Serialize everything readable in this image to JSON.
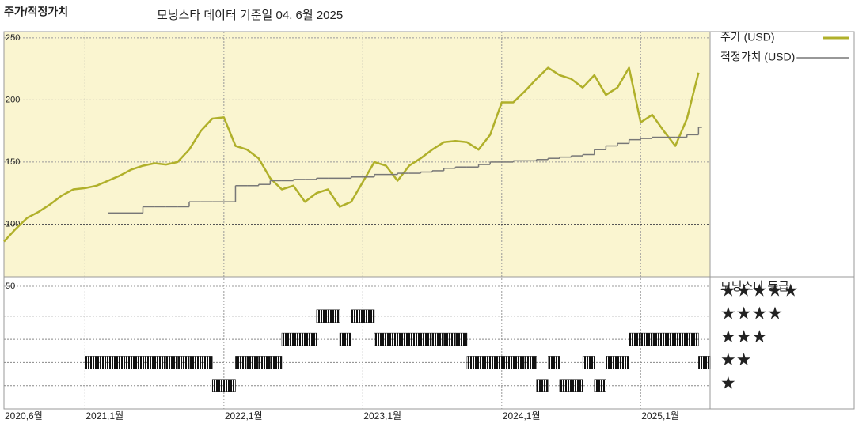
{
  "chart_data": [
    {
      "type": "line",
      "title": "주가/적정가치",
      "subtitle": "모닝스타 데이터 기준일 04. 6월 2025",
      "x": [
        "2020-06",
        "2020-07",
        "2020-08",
        "2020-09",
        "2020-10",
        "2020-11",
        "2020-12",
        "2021-01",
        "2021-02",
        "2021-03",
        "2021-04",
        "2021-05",
        "2021-06",
        "2021-07",
        "2021-08",
        "2021-09",
        "2021-10",
        "2021-11",
        "2021-12",
        "2022-01",
        "2022-02",
        "2022-03",
        "2022-04",
        "2022-05",
        "2022-06",
        "2022-07",
        "2022-08",
        "2022-09",
        "2022-10",
        "2022-11",
        "2022-12",
        "2023-01",
        "2023-02",
        "2023-03",
        "2023-04",
        "2023-05",
        "2023-06",
        "2023-07",
        "2023-08",
        "2023-09",
        "2023-10",
        "2023-11",
        "2023-12",
        "2024-01",
        "2024-02",
        "2024-03",
        "2024-04",
        "2024-05",
        "2024-06",
        "2024-07",
        "2024-08",
        "2024-09",
        "2024-10",
        "2024-11",
        "2024-12",
        "2025-01",
        "2025-02",
        "2025-03",
        "2025-04",
        "2025-05",
        "2025-06"
      ],
      "series": [
        {
          "name": "주가 (USD)",
          "color": "#b0b02a",
          "style": "line",
          "values": [
            86,
            96,
            105,
            110,
            116,
            123,
            128,
            129,
            131,
            135,
            139,
            144,
            147,
            149,
            148,
            150,
            160,
            175,
            185,
            186,
            163,
            160,
            153,
            137,
            128,
            131,
            118,
            125,
            128,
            114,
            118,
            134,
            150,
            147,
            135,
            147,
            153,
            160,
            166,
            167,
            166,
            160,
            172,
            198,
            198,
            207,
            217,
            226,
            220,
            217,
            210,
            220,
            204,
            210,
            226,
            182,
            188,
            175,
            163,
            185,
            222
          ]
        },
        {
          "name": "적정가치 (USD)",
          "color": "#777777",
          "style": "step",
          "values": [
            null,
            null,
            null,
            null,
            null,
            null,
            null,
            null,
            null,
            109,
            109,
            109,
            114,
            114,
            114,
            114,
            118,
            118,
            118,
            118,
            131,
            131,
            132,
            135,
            135,
            136,
            136,
            137,
            137,
            137,
            138,
            138,
            140,
            140,
            141,
            141,
            142,
            143,
            145,
            146,
            146,
            148,
            150,
            150,
            151,
            151,
            152,
            153,
            154,
            155,
            156,
            160,
            163,
            165,
            168,
            169,
            170,
            170,
            170,
            172,
            178
          ]
        }
      ],
      "xlim": [
        "2020-06",
        "2025-07"
      ],
      "ylim": [
        50,
        255
      ],
      "yticks": [
        50,
        100,
        150,
        200,
        250
      ]
    },
    {
      "type": "rating",
      "title": "모닝스타 등급",
      "x": [
        "2020-06",
        "2020-07",
        "2020-08",
        "2020-09",
        "2020-10",
        "2020-11",
        "2020-12",
        "2021-01",
        "2021-02",
        "2021-03",
        "2021-04",
        "2021-05",
        "2021-06",
        "2021-07",
        "2021-08",
        "2021-09",
        "2021-10",
        "2021-11",
        "2021-12",
        "2022-01",
        "2022-02",
        "2022-03",
        "2022-04",
        "2022-05",
        "2022-06",
        "2022-07",
        "2022-08",
        "2022-09",
        "2022-10",
        "2022-11",
        "2022-12",
        "2023-01",
        "2023-02",
        "2023-03",
        "2023-04",
        "2023-05",
        "2023-06",
        "2023-07",
        "2023-08",
        "2023-09",
        "2023-10",
        "2023-11",
        "2023-12",
        "2024-01",
        "2024-02",
        "2024-03",
        "2024-04",
        "2024-05",
        "2024-06",
        "2024-07",
        "2024-08",
        "2024-09",
        "2024-10",
        "2024-11",
        "2024-12",
        "2025-01",
        "2025-02",
        "2025-03",
        "2025-04",
        "2025-05",
        "2025-06"
      ],
      "values": [
        null,
        null,
        null,
        null,
        null,
        null,
        null,
        2,
        2,
        2,
        2,
        2,
        2,
        2,
        2,
        2,
        2,
        2,
        1,
        1,
        2,
        2,
        2,
        2,
        3,
        3,
        3,
        4,
        4,
        3,
        4,
        4,
        3,
        3,
        3,
        3,
        3,
        3,
        3,
        3,
        2,
        2,
        2,
        2,
        2,
        2,
        1,
        2,
        1,
        1,
        2,
        1,
        2,
        2,
        3,
        3,
        3,
        3,
        3,
        3,
        2
      ],
      "color": "#111111",
      "xlim": [
        "2020-06",
        "2025-07"
      ],
      "ylim": [
        0,
        5.7
      ],
      "yticks": [
        {
          "value": 5,
          "label": "★★★★★"
        },
        {
          "value": 4,
          "label": "★★★★"
        },
        {
          "value": 3,
          "label": "★★★"
        },
        {
          "value": 2,
          "label": "★★"
        },
        {
          "value": 1,
          "label": "★"
        }
      ],
      "xticks": [
        {
          "value": "2020-06",
          "label": "2020,6월"
        },
        {
          "value": "2021-01",
          "label": "2021,1월"
        },
        {
          "value": "2022-01",
          "label": "2022,1월"
        },
        {
          "value": "2023-01",
          "label": "2023,1월"
        },
        {
          "value": "2024-01",
          "label": "2024,1월"
        },
        {
          "value": "2025-01",
          "label": "2025,1월"
        }
      ]
    }
  ]
}
